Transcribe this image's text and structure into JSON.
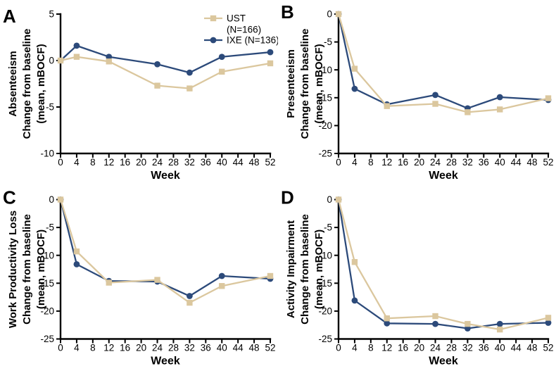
{
  "figure": {
    "background": "#ffffff",
    "axis_color": "#000000",
    "text_color": "#000000",
    "ust_color": "#dbc79e",
    "ixe_color": "#2c4a7a"
  },
  "chart_data": [
    {
      "type": "line",
      "panel_label": "A",
      "ylabel_lines": [
        "Absenteeism",
        "Change from baseline",
        "(mean, mBOCF)"
      ],
      "xlabel": "Week",
      "ylim": [
        5,
        -10
      ],
      "yticks": [
        5,
        0,
        -5,
        -10
      ],
      "xlim": [
        0,
        52
      ],
      "xticks": [
        0,
        4,
        8,
        12,
        16,
        20,
        24,
        28,
        32,
        36,
        40,
        44,
        48,
        52
      ],
      "x": [
        0,
        4,
        12,
        24,
        32,
        40,
        52
      ],
      "show_legend": true,
      "legend_position": "top-right",
      "grid": false,
      "series": [
        {
          "name": "UST (N=166)",
          "legend_lines": [
            "UST",
            "(N=166)"
          ],
          "color": "#dbc79e",
          "marker": "square",
          "values": [
            0,
            0.4,
            -0.1,
            -2.7,
            -3.0,
            -1.2,
            -0.3
          ]
        },
        {
          "name": "IXE (N=136)",
          "legend_lines": [
            "IXE (N=136)"
          ],
          "color": "#2c4a7a",
          "marker": "circle",
          "values": [
            0,
            1.6,
            0.4,
            -0.4,
            -1.3,
            0.4,
            0.9
          ]
        }
      ]
    },
    {
      "type": "line",
      "panel_label": "B",
      "ylabel_lines": [
        "Presenteeism",
        "Change from baseline",
        "(mean, mBOCF)"
      ],
      "xlabel": "Week",
      "ylim": [
        0,
        -25
      ],
      "yticks": [
        0,
        -5,
        -10,
        -15,
        -20,
        -25
      ],
      "xlim": [
        0,
        52
      ],
      "xticks": [
        0,
        4,
        8,
        12,
        16,
        20,
        24,
        28,
        32,
        36,
        40,
        44,
        48,
        52
      ],
      "x": [
        0,
        4,
        12,
        24,
        32,
        40,
        52
      ],
      "show_legend": false,
      "grid": false,
      "series": [
        {
          "name": "UST (N=166)",
          "legend_lines": [
            "UST",
            "(N=166)"
          ],
          "color": "#dbc79e",
          "marker": "square",
          "values": [
            0,
            -9.8,
            -16.5,
            -16.1,
            -17.6,
            -17.1,
            -15.1
          ]
        },
        {
          "name": "IXE (N=136)",
          "legend_lines": [
            "IXE (N=136)"
          ],
          "color": "#2c4a7a",
          "marker": "circle",
          "values": [
            0,
            -13.4,
            -16.2,
            -14.5,
            -16.9,
            -14.9,
            -15.4
          ]
        }
      ]
    },
    {
      "type": "line",
      "panel_label": "C",
      "ylabel_lines": [
        "Work  Productivity Loss",
        "Change from baseline",
        "(mean, mBOCF)"
      ],
      "xlabel": "Week",
      "ylim": [
        0,
        -25
      ],
      "yticks": [
        0,
        -5,
        -10,
        -15,
        -20,
        -25
      ],
      "xlim": [
        0,
        52
      ],
      "xticks": [
        0,
        4,
        8,
        12,
        16,
        20,
        24,
        28,
        32,
        36,
        40,
        44,
        48,
        52
      ],
      "x": [
        0,
        4,
        12,
        24,
        32,
        40,
        52
      ],
      "show_legend": false,
      "grid": false,
      "series": [
        {
          "name": "UST (N=166)",
          "legend_lines": [
            "UST",
            "(N=166)"
          ],
          "color": "#dbc79e",
          "marker": "square",
          "values": [
            0,
            -9.3,
            -14.9,
            -14.4,
            -18.5,
            -15.5,
            -13.7
          ]
        },
        {
          "name": "IXE (N=136)",
          "legend_lines": [
            "IXE (N=136)"
          ],
          "color": "#2c4a7a",
          "marker": "circle",
          "values": [
            0,
            -11.6,
            -14.6,
            -14.7,
            -17.3,
            -13.7,
            -14.2
          ]
        }
      ]
    },
    {
      "type": "line",
      "panel_label": "D",
      "ylabel_lines": [
        "Activity Impairment",
        "Change from baseline",
        "(mean, mBOCF)"
      ],
      "xlabel": "Week",
      "ylim": [
        0,
        -25
      ],
      "yticks": [
        0,
        -5,
        -10,
        -15,
        -20,
        -25
      ],
      "xlim": [
        0,
        52
      ],
      "xticks": [
        0,
        4,
        8,
        12,
        16,
        20,
        24,
        28,
        32,
        36,
        40,
        44,
        48,
        52
      ],
      "x": [
        0,
        4,
        12,
        24,
        32,
        40,
        52
      ],
      "show_legend": false,
      "grid": false,
      "series": [
        {
          "name": "UST (N=166)",
          "legend_lines": [
            "UST",
            "(N=166)"
          ],
          "color": "#dbc79e",
          "marker": "square",
          "values": [
            0,
            -11.2,
            -21.3,
            -20.9,
            -22.3,
            -23.3,
            -21.2
          ]
        },
        {
          "name": "IXE (N=136)",
          "legend_lines": [
            "IXE (N=136)"
          ],
          "color": "#2c4a7a",
          "marker": "circle",
          "values": [
            0,
            -18.1,
            -22.2,
            -22.3,
            -23.1,
            -22.3,
            -22.1
          ]
        }
      ]
    }
  ]
}
